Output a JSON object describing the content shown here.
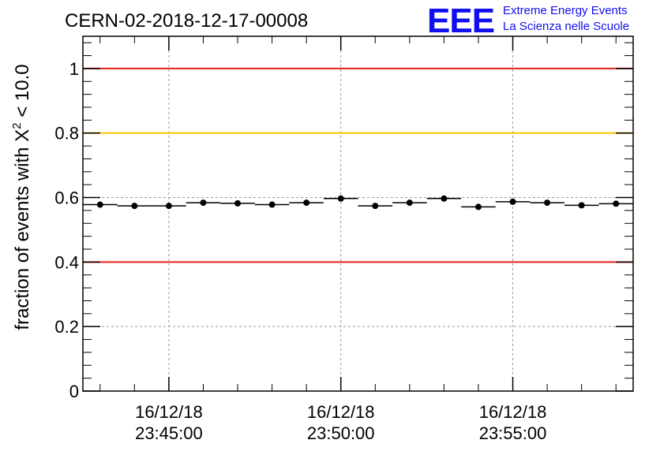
{
  "header": {
    "run_title": "CERN-02-2018-12-17-00008",
    "logo_text": "EEE",
    "org_line1": "Extreme Energy Events",
    "org_line2": "La Scienza nelle Scuole"
  },
  "chart_data": {
    "type": "scatter",
    "title": "CERN-02-2018-12-17-00008",
    "ylabel_prefix": "fraction of events with ",
    "ylabel_symbol": "X",
    "ylabel_exponent": "2",
    "ylabel_suffix": " < 10.0",
    "ylim": [
      0,
      1.1
    ],
    "xlim_minutes": [
      -0.5,
      15.5
    ],
    "y_ticks": [
      "0",
      "0.2",
      "0.4",
      "0.6",
      "0.8",
      "1"
    ],
    "x_ticks": [
      {
        "date": "16/12/18",
        "time": "23:45:00",
        "minute": 2
      },
      {
        "date": "16/12/18",
        "time": "23:50:00",
        "minute": 7
      },
      {
        "date": "16/12/18",
        "time": "23:55:00",
        "minute": 12
      }
    ],
    "reference_lines": [
      {
        "y": 1.0,
        "color": "#e8201a"
      },
      {
        "y": 0.8,
        "color": "#ffc400"
      },
      {
        "y": 0.4,
        "color": "#e8201a"
      }
    ],
    "grid": true,
    "series": [
      {
        "x": [
          0,
          1,
          2,
          3,
          4,
          5,
          6,
          7,
          8,
          9,
          10,
          11,
          12,
          13,
          14,
          15
        ],
        "values": [
          0.578,
          0.574,
          0.574,
          0.584,
          0.582,
          0.578,
          0.584,
          0.597,
          0.574,
          0.584,
          0.597,
          0.571,
          0.587,
          0.584,
          0.576,
          0.581
        ],
        "marker_color": "#000000"
      }
    ]
  }
}
